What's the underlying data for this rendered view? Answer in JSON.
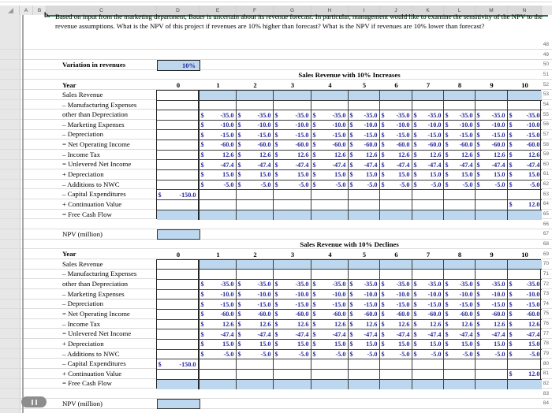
{
  "format": {
    "currency": "$"
  },
  "colors": {
    "cell_fill": "#bdd7ee",
    "value_text": "#26269b",
    "selection_green": "#217346"
  },
  "sheet": {
    "column_letters": [
      "A",
      "B",
      "C",
      "D",
      "E",
      "F",
      "G",
      "H",
      "I",
      "J",
      "K",
      "L",
      "M",
      "N"
    ],
    "row_numbers": [
      "48",
      "49",
      "50",
      "51",
      "52",
      "53",
      "54",
      "55",
      "56",
      "57",
      "58",
      "59",
      "60",
      "61",
      "62",
      "63",
      "64",
      "65",
      "66",
      "67",
      "68",
      "69",
      "70",
      "71",
      "72",
      "73",
      "74",
      "75",
      "76",
      "77",
      "78",
      "79",
      "80",
      "81",
      "82",
      "83",
      "84"
    ]
  },
  "question": {
    "label": "b.",
    "text": "Based on input from the marketing department, Bauer is uncertain about its revenue forecast. In particular, management would like to examine the sensitivity of the NPV to the revenue assumptions. What is the NPV of this project if revenues are 10% higher than forecast? What is the NPV if revenues are 10% lower than forecast?"
  },
  "controls": {
    "variation_label": "Variation in revenues",
    "variation_value": "10%",
    "npv_label": "NPV (million)"
  },
  "year_header": {
    "label": "Year",
    "values": [
      "0",
      "1",
      "2",
      "3",
      "4",
      "5",
      "6",
      "7",
      "8",
      "9",
      "10"
    ]
  },
  "tables": [
    {
      "title": "Sales Revenue with 10% Increases",
      "npv_value": "",
      "rows": [
        {
          "label": "Sales Revenue",
          "fill": "inputs",
          "cells": [
            "",
            "",
            "",
            "",
            "",
            "",
            "",
            "",
            "",
            "",
            ""
          ]
        },
        {
          "label": "– Manufacturing Expenses",
          "cells": [
            "",
            "",
            "",
            "",
            "",
            "",
            "",
            "",
            "",
            "",
            ""
          ]
        },
        {
          "label": "other than Depreciation",
          "cells": [
            "",
            "-35.0",
            "-35.0",
            "-35.0",
            "-35.0",
            "-35.0",
            "-35.0",
            "-35.0",
            "-35.0",
            "-35.0",
            "-35.0"
          ]
        },
        {
          "label": "– Marketing Expenses",
          "cells": [
            "",
            "-10.0",
            "-10.0",
            "-10.0",
            "-10.0",
            "-10.0",
            "-10.0",
            "-10.0",
            "-10.0",
            "-10.0",
            "-10.0"
          ]
        },
        {
          "label": "– Depreciation",
          "cells": [
            "",
            "-15.0",
            "-15.0",
            "-15.0",
            "-15.0",
            "-15.0",
            "-15.0",
            "-15.0",
            "-15.0",
            "-15.0",
            "-15.0"
          ]
        },
        {
          "label": "= Net Operating Income",
          "cells": [
            "",
            "-60.0",
            "-60.0",
            "-60.0",
            "-60.0",
            "-60.0",
            "-60.0",
            "-60.0",
            "-60.0",
            "-60.0",
            "-60.0"
          ]
        },
        {
          "label": "– Income Tax",
          "cells": [
            "",
            "12.6",
            "12.6",
            "12.6",
            "12.6",
            "12.6",
            "12.6",
            "12.6",
            "12.6",
            "12.6",
            "12.6"
          ]
        },
        {
          "label": "= Unlevered Net Income",
          "cells": [
            "",
            "-47.4",
            "-47.4",
            "-47.4",
            "-47.4",
            "-47.4",
            "-47.4",
            "-47.4",
            "-47.4",
            "-47.4",
            "-47.4"
          ]
        },
        {
          "label": "+ Depreciation",
          "cells": [
            "",
            "15.0",
            "15.0",
            "15.0",
            "15.0",
            "15.0",
            "15.0",
            "15.0",
            "15.0",
            "15.0",
            "15.0"
          ]
        },
        {
          "label": "– Additions to NWC",
          "cells": [
            "",
            "-5.0",
            "-5.0",
            "-5.0",
            "-5.0",
            "-5.0",
            "-5.0",
            "-5.0",
            "-5.0",
            "-5.0",
            "-5.0"
          ]
        },
        {
          "label": "– Capital Expenditures",
          "cells": [
            "-150.0",
            "",
            "",
            "",
            "",
            "",
            "",
            "",
            "",
            "",
            ""
          ]
        },
        {
          "label": "+ Continuation Value",
          "cells": [
            "",
            "",
            "",
            "",
            "",
            "",
            "",
            "",
            "",
            "",
            "12.0"
          ]
        },
        {
          "label": "= Free Cash Flow",
          "fill": "all",
          "cells": [
            "",
            "",
            "",
            "",
            "",
            "",
            "",
            "",
            "",
            "",
            ""
          ]
        }
      ]
    },
    {
      "title": "Sales Revenue with 10% Declines",
      "npv_value": "",
      "rows": [
        {
          "label": "Sales Revenue",
          "fill": "inputs",
          "cells": [
            "",
            "",
            "",
            "",
            "",
            "",
            "",
            "",
            "",
            "",
            ""
          ]
        },
        {
          "label": "– Manufacturing Expenses",
          "cells": [
            "",
            "",
            "",
            "",
            "",
            "",
            "",
            "",
            "",
            "",
            ""
          ]
        },
        {
          "label": "other than Depreciation",
          "cells": [
            "",
            "-35.0",
            "-35.0",
            "-35.0",
            "-35.0",
            "-35.0",
            "-35.0",
            "-35.0",
            "-35.0",
            "-35.0",
            "-35.0"
          ]
        },
        {
          "label": "– Marketing Expenses",
          "cells": [
            "",
            "-10.0",
            "-10.0",
            "-10.0",
            "-10.0",
            "-10.0",
            "-10.0",
            "-10.0",
            "-10.0",
            "-10.0",
            "-10.0"
          ]
        },
        {
          "label": "– Depreciation",
          "cells": [
            "",
            "-15.0",
            "-15.0",
            "-15.0",
            "-15.0",
            "-15.0",
            "-15.0",
            "-15.0",
            "-15.0",
            "-15.0",
            "-15.0"
          ]
        },
        {
          "label": "= Net Operating Income",
          "cells": [
            "",
            "-60.0",
            "-60.0",
            "-60.0",
            "-60.0",
            "-60.0",
            "-60.0",
            "-60.0",
            "-60.0",
            "-60.0",
            "-60.0"
          ]
        },
        {
          "label": "– Income Tax",
          "cells": [
            "",
            "12.6",
            "12.6",
            "12.6",
            "12.6",
            "12.6",
            "12.6",
            "12.6",
            "12.6",
            "12.6",
            "12.6"
          ]
        },
        {
          "label": "= Unlevered Net Income",
          "cells": [
            "",
            "-47.4",
            "-47.4",
            "-47.4",
            "-47.4",
            "-47.4",
            "-47.4",
            "-47.4",
            "-47.4",
            "-47.4",
            "-47.4"
          ]
        },
        {
          "label": "+ Depreciation",
          "cells": [
            "",
            "15.0",
            "15.0",
            "15.0",
            "15.0",
            "15.0",
            "15.0",
            "15.0",
            "15.0",
            "15.0",
            "15.0"
          ]
        },
        {
          "label": "– Additions to NWC",
          "cells": [
            "",
            "-5.0",
            "-5.0",
            "-5.0",
            "-5.0",
            "-5.0",
            "-5.0",
            "-5.0",
            "-5.0",
            "-5.0",
            "-5.0"
          ]
        },
        {
          "label": "– Capital Expenditures",
          "cells": [
            "-150.0",
            "",
            "",
            "",
            "",
            "",
            "",
            "",
            "",
            "",
            ""
          ]
        },
        {
          "label": "+ Continuation Value",
          "cells": [
            "",
            "",
            "",
            "",
            "",
            "",
            "",
            "",
            "",
            "",
            "12.0"
          ]
        },
        {
          "label": "= Free Cash Flow",
          "fill": "all",
          "cells": [
            "",
            "",
            "",
            "",
            "",
            "",
            "",
            "",
            "",
            "",
            ""
          ]
        }
      ]
    }
  ]
}
